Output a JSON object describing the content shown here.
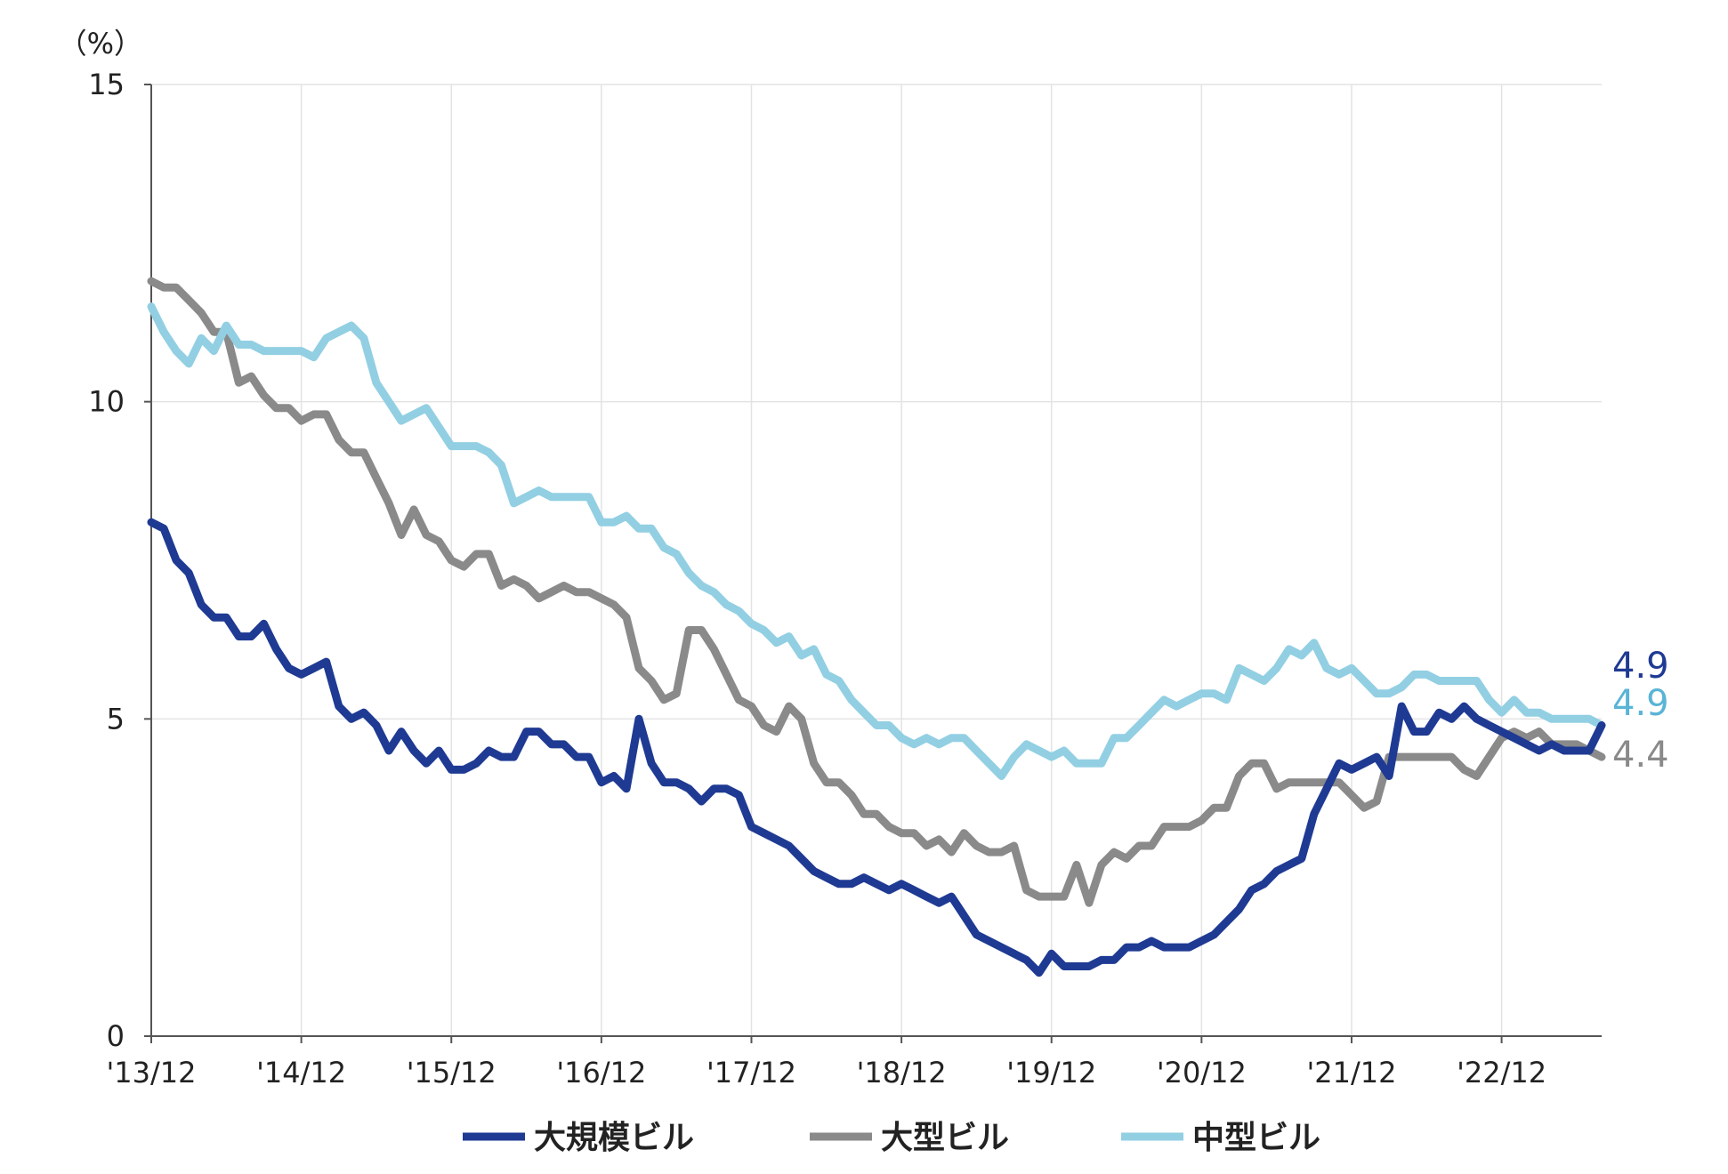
{
  "chart_data": {
    "type": "line",
    "y_unit_label": "（%）",
    "ylim": [
      0,
      15
    ],
    "y_ticks": [
      0,
      5,
      10,
      15
    ],
    "xlim": [
      0,
      116
    ],
    "x_ticks": [
      {
        "label": "'13/12",
        "x": 0
      },
      {
        "label": "'14/12",
        "x": 12
      },
      {
        "label": "'15/12",
        "x": 24
      },
      {
        "label": "'16/12",
        "x": 36
      },
      {
        "label": "'17/12",
        "x": 48
      },
      {
        "label": "'18/12",
        "x": 60
      },
      {
        "label": "'19/12",
        "x": 72
      },
      {
        "label": "'20/12",
        "x": 84
      },
      {
        "label": "'21/12",
        "x": 96
      },
      {
        "label": "'22/12",
        "x": 108
      }
    ],
    "grid": true,
    "legend_position": "bottom",
    "series": [
      {
        "name": "大規模ビル",
        "color": "#1f3a93",
        "end_label": "4.9",
        "values": [
          8.1,
          8.0,
          7.5,
          7.3,
          6.8,
          6.6,
          6.6,
          6.3,
          6.3,
          6.5,
          6.1,
          5.8,
          5.7,
          5.8,
          5.9,
          5.2,
          5.0,
          5.1,
          4.9,
          4.5,
          4.8,
          4.5,
          4.3,
          4.5,
          4.2,
          4.2,
          4.3,
          4.5,
          4.4,
          4.4,
          4.8,
          4.8,
          4.6,
          4.6,
          4.4,
          4.4,
          4.0,
          4.1,
          3.9,
          5.0,
          4.3,
          4.0,
          4.0,
          3.9,
          3.7,
          3.9,
          3.9,
          3.8,
          3.3,
          3.2,
          3.1,
          3.0,
          2.8,
          2.6,
          2.5,
          2.4,
          2.4,
          2.5,
          2.4,
          2.3,
          2.4,
          2.3,
          2.2,
          2.1,
          2.2,
          1.9,
          1.6,
          1.5,
          1.4,
          1.3,
          1.2,
          1.0,
          1.3,
          1.1,
          1.1,
          1.1,
          1.2,
          1.2,
          1.4,
          1.4,
          1.5,
          1.4,
          1.4,
          1.4,
          1.5,
          1.6,
          1.8,
          2.0,
          2.3,
          2.4,
          2.6,
          2.7,
          2.8,
          3.5,
          3.9,
          4.3,
          4.2,
          4.3,
          4.4,
          4.1,
          5.2,
          4.8,
          4.8,
          5.1,
          5.0,
          5.2,
          5.0,
          4.9,
          4.8,
          4.7,
          4.6,
          4.5,
          4.6,
          4.5,
          4.5,
          4.5,
          4.9
        ]
      },
      {
        "name": "大型ビル",
        "color": "#8a8a8a",
        "end_label": "4.4",
        "values": [
          11.9,
          11.8,
          11.8,
          11.6,
          11.4,
          11.1,
          11.1,
          10.3,
          10.4,
          10.1,
          9.9,
          9.9,
          9.7,
          9.8,
          9.8,
          9.4,
          9.2,
          9.2,
          8.8,
          8.4,
          7.9,
          8.3,
          7.9,
          7.8,
          7.5,
          7.4,
          7.6,
          7.6,
          7.1,
          7.2,
          7.1,
          6.9,
          7.0,
          7.1,
          7.0,
          7.0,
          6.9,
          6.8,
          6.6,
          5.8,
          5.6,
          5.3,
          5.4,
          6.4,
          6.4,
          6.1,
          5.7,
          5.3,
          5.2,
          4.9,
          4.8,
          5.2,
          5.0,
          4.3,
          4.0,
          4.0,
          3.8,
          3.5,
          3.5,
          3.3,
          3.2,
          3.2,
          3.0,
          3.1,
          2.9,
          3.2,
          3.0,
          2.9,
          2.9,
          3.0,
          2.3,
          2.2,
          2.2,
          2.2,
          2.7,
          2.1,
          2.7,
          2.9,
          2.8,
          3.0,
          3.0,
          3.3,
          3.3,
          3.3,
          3.4,
          3.6,
          3.6,
          4.1,
          4.3,
          4.3,
          3.9,
          4.0,
          4.0,
          4.0,
          4.0,
          4.0,
          3.8,
          3.6,
          3.7,
          4.4,
          4.4,
          4.4,
          4.4,
          4.4,
          4.4,
          4.2,
          4.1,
          4.4,
          4.7,
          4.8,
          4.7,
          4.8,
          4.6,
          4.6,
          4.6,
          4.5,
          4.4
        ]
      },
      {
        "name": "中型ビル",
        "color": "#92cfe3",
        "end_label": "4.9",
        "values": [
          11.5,
          11.1,
          10.8,
          10.6,
          11.0,
          10.8,
          11.2,
          10.9,
          10.9,
          10.8,
          10.8,
          10.8,
          10.8,
          10.7,
          11.0,
          11.1,
          11.2,
          11.0,
          10.3,
          10.0,
          9.7,
          9.8,
          9.9,
          9.6,
          9.3,
          9.3,
          9.3,
          9.2,
          9.0,
          8.4,
          8.5,
          8.6,
          8.5,
          8.5,
          8.5,
          8.5,
          8.1,
          8.1,
          8.2,
          8.0,
          8.0,
          7.7,
          7.6,
          7.3,
          7.1,
          7.0,
          6.8,
          6.7,
          6.5,
          6.4,
          6.2,
          6.3,
          6.0,
          6.1,
          5.7,
          5.6,
          5.3,
          5.1,
          4.9,
          4.9,
          4.7,
          4.6,
          4.7,
          4.6,
          4.7,
          4.7,
          4.5,
          4.3,
          4.1,
          4.4,
          4.6,
          4.5,
          4.4,
          4.5,
          4.3,
          4.3,
          4.3,
          4.7,
          4.7,
          4.9,
          5.1,
          5.3,
          5.2,
          5.3,
          5.4,
          5.4,
          5.3,
          5.8,
          5.7,
          5.6,
          5.8,
          6.1,
          6.0,
          6.2,
          5.8,
          5.7,
          5.8,
          5.6,
          5.4,
          5.4,
          5.5,
          5.7,
          5.7,
          5.6,
          5.6,
          5.6,
          5.6,
          5.3,
          5.1,
          5.3,
          5.1,
          5.1,
          5.0,
          5.0,
          5.0,
          5.0,
          4.9
        ]
      }
    ]
  }
}
